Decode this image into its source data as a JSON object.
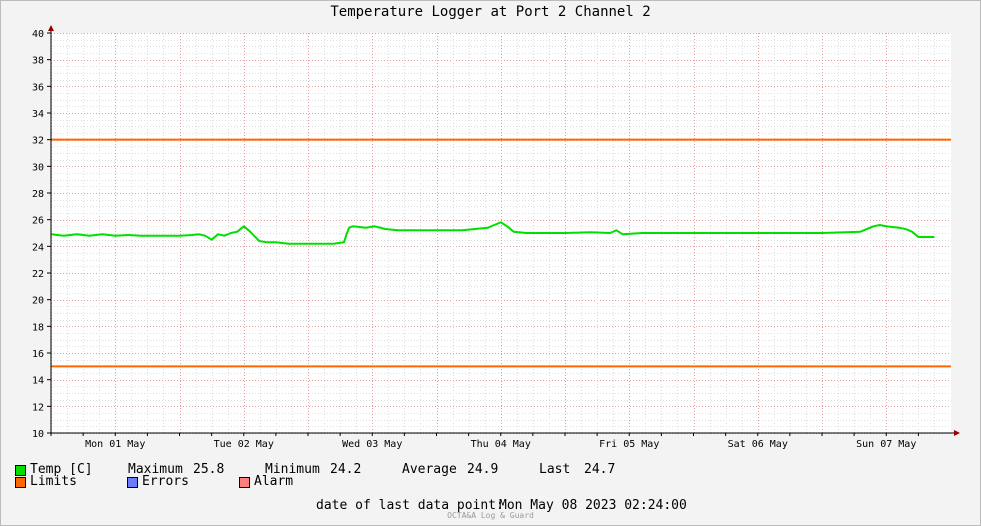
{
  "chart_data": {
    "type": "line",
    "title": "Temperature Logger at Port 2 Channel 2",
    "ylim": [
      10,
      40
    ],
    "y_ticks": [
      10,
      12,
      14,
      16,
      18,
      20,
      22,
      24,
      26,
      28,
      30,
      32,
      34,
      36,
      38,
      40
    ],
    "xlim_days": [
      0,
      6.875
    ],
    "x_ticks": [
      {
        "day": 0.5,
        "label": "Mon 01 May"
      },
      {
        "day": 1.5,
        "label": "Tue 02 May"
      },
      {
        "day": 2.5,
        "label": "Wed 03 May"
      },
      {
        "day": 3.5,
        "label": "Thu 04 May"
      },
      {
        "day": 4.5,
        "label": "Fri 05 May"
      },
      {
        "day": 5.5,
        "label": "Sat 06 May"
      },
      {
        "day": 6.5,
        "label": "Sun 07 May"
      }
    ],
    "grid": true,
    "series": [
      {
        "name": "Temp [C]",
        "color": "#00e000",
        "x": [
          0.0,
          0.1,
          0.2,
          0.3,
          0.4,
          0.5,
          0.6,
          0.7,
          0.8,
          0.9,
          1.0,
          1.1,
          1.15,
          1.2,
          1.25,
          1.3,
          1.35,
          1.4,
          1.45,
          1.5,
          1.55,
          1.58,
          1.62,
          1.68,
          1.75,
          1.85,
          2.0,
          2.1,
          2.2,
          2.28,
          2.3,
          2.32,
          2.35,
          2.45,
          2.52,
          2.6,
          2.7,
          2.8,
          2.9,
          3.0,
          3.1,
          3.2,
          3.3,
          3.4,
          3.45,
          3.5,
          3.55,
          3.6,
          3.7,
          3.8,
          4.0,
          4.2,
          4.35,
          4.4,
          4.45,
          4.6,
          4.8,
          5.0,
          5.2,
          5.5,
          6.0,
          6.3,
          6.4,
          6.45,
          6.5,
          6.6,
          6.65,
          6.7,
          6.75,
          6.8,
          6.875
        ],
        "values": [
          24.9,
          24.8,
          24.9,
          24.8,
          24.9,
          24.8,
          24.85,
          24.8,
          24.8,
          24.8,
          24.8,
          24.85,
          24.9,
          24.8,
          24.5,
          24.9,
          24.8,
          25.0,
          25.1,
          25.5,
          25.1,
          24.8,
          24.4,
          24.3,
          24.3,
          24.2,
          24.2,
          24.2,
          24.2,
          24.3,
          24.9,
          25.4,
          25.5,
          25.4,
          25.5,
          25.3,
          25.2,
          25.2,
          25.2,
          25.2,
          25.2,
          25.2,
          25.3,
          25.4,
          25.6,
          25.8,
          25.5,
          25.1,
          25.0,
          25.0,
          25.0,
          25.05,
          25.0,
          25.2,
          24.9,
          25.0,
          25.0,
          25.0,
          25.0,
          25.0,
          25.0,
          25.1,
          25.5,
          25.6,
          25.5,
          25.4,
          25.3,
          25.1,
          24.7,
          24.7,
          24.7
        ]
      },
      {
        "name": "Limits",
        "color": "#ff6600",
        "values": [
          32,
          15
        ]
      }
    ]
  },
  "stats": {
    "series_name": "Temp [C]",
    "maximum_label": "Maximum",
    "maximum": "25.8",
    "minimum_label": "Minimum",
    "minimum": "24.2",
    "average_label": "Average",
    "average": "24.9",
    "last_label": "Last",
    "last": "24.7"
  },
  "legend": {
    "limits": "Limits",
    "limits_color": "#ff6600",
    "errors": "Errors",
    "errors_color": "#6b7cff",
    "alarm": "Alarm",
    "alarm_color": "#ff7f7f",
    "temp_color": "#00e000"
  },
  "footer": {
    "last_point_label": "date of last data point:",
    "last_point_value": "Mon May 08 2023 02:24:00",
    "credit": "OCTA&A Log & Guard"
  }
}
